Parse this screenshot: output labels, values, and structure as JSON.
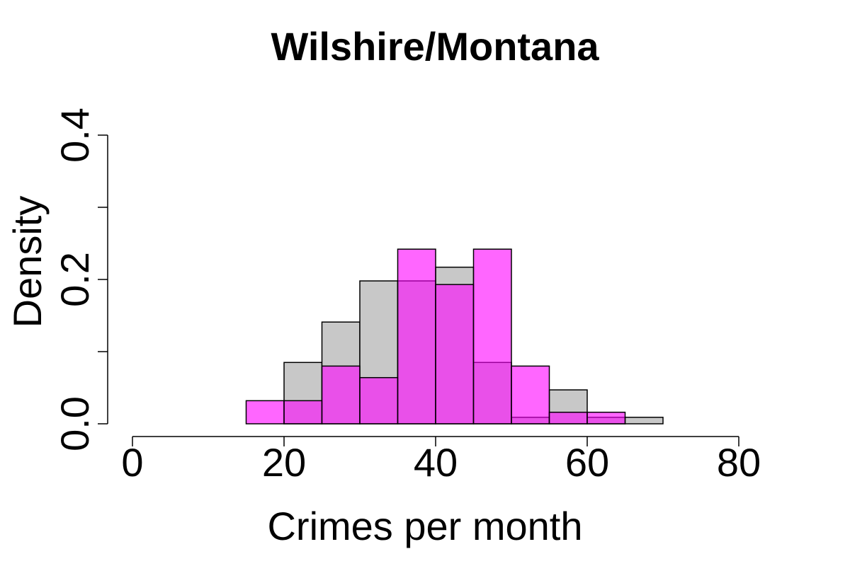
{
  "chart_data": {
    "type": "bar",
    "title": "Wilshire/Montana",
    "xlabel": "Crimes per month",
    "ylabel": "Density",
    "xlim": [
      0,
      80
    ],
    "ylim": [
      0,
      0.4
    ],
    "x_ticks": [
      0,
      20,
      40,
      60,
      80
    ],
    "x_tick_labels": [
      "0",
      "20",
      "40",
      "60",
      "80"
    ],
    "y_ticks": [
      0,
      0.1,
      0.2,
      0.3,
      0.4
    ],
    "y_tick_labels": [
      "0.0",
      "",
      "0.2",
      "",
      "0.4"
    ],
    "bin_edges": [
      0,
      5,
      10,
      15,
      20,
      25,
      30,
      35,
      40,
      45,
      50,
      55,
      60,
      65,
      70
    ],
    "series": [
      {
        "color": "#c8c8c8",
        "values": [
          0,
          0,
          0,
          0,
          0.085,
          0.141,
          0.198,
          0.198,
          0.217,
          0.085,
          0.009,
          0.047,
          0.009,
          0.009
        ]
      },
      {
        "color": "#ff00ff",
        "opacity": 0.6,
        "values": [
          0,
          0,
          0,
          0.032,
          0.032,
          0.08,
          0.064,
          0.242,
          0.193,
          0.242,
          0.08,
          0.016,
          0.016,
          0
        ]
      }
    ],
    "grid": false,
    "legend": "none"
  }
}
